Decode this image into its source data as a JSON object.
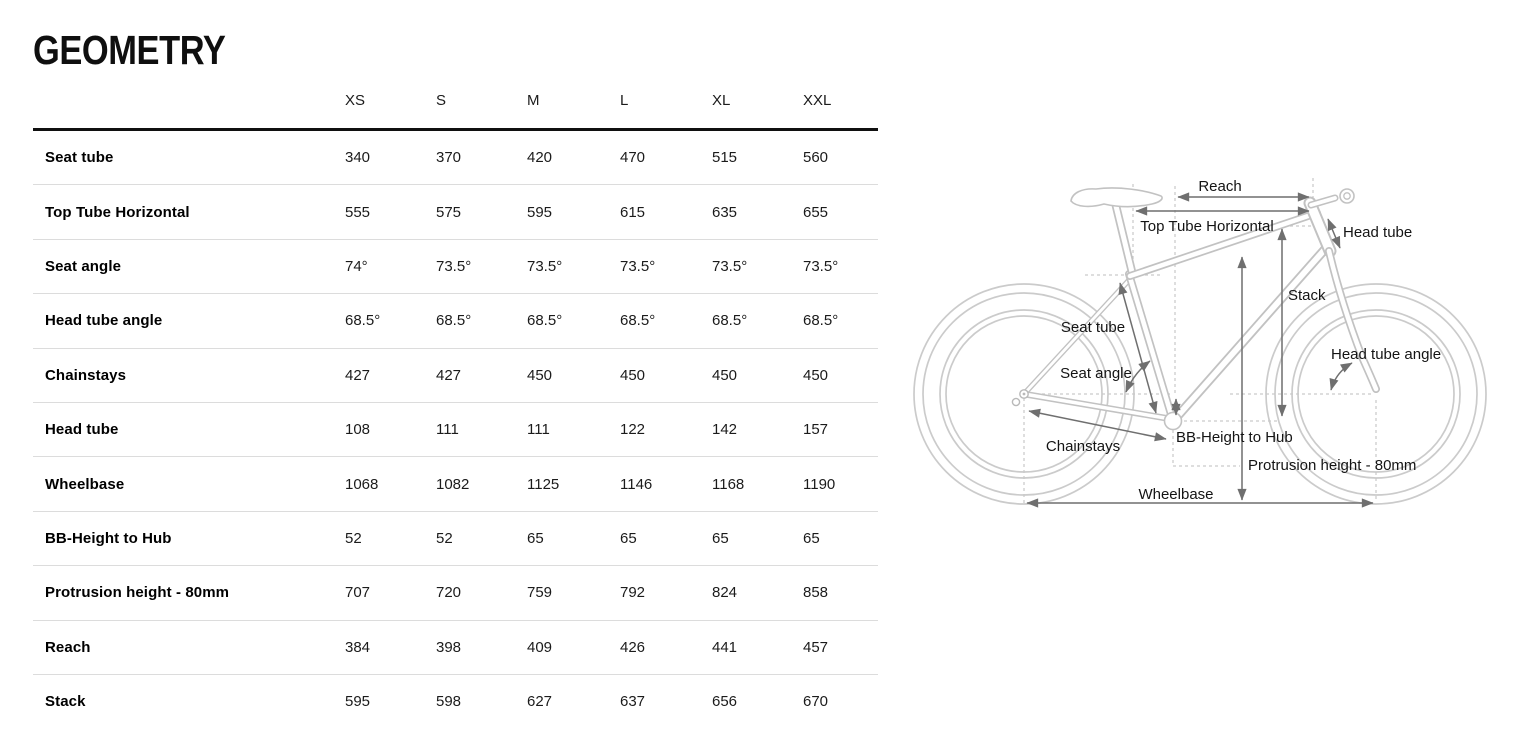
{
  "page": {
    "title": "GEOMETRY"
  },
  "table": {
    "columns": [
      "XS",
      "S",
      "M",
      "L",
      "XL",
      "XXL"
    ],
    "rows": [
      {
        "label": "Seat tube",
        "values": [
          "340",
          "370",
          "420",
          "470",
          "515",
          "560"
        ]
      },
      {
        "label": "Top Tube Horizontal",
        "values": [
          "555",
          "575",
          "595",
          "615",
          "635",
          "655"
        ]
      },
      {
        "label": "Seat angle",
        "values": [
          "74°",
          "73.5°",
          "73.5°",
          "73.5°",
          "73.5°",
          "73.5°"
        ]
      },
      {
        "label": "Head tube angle",
        "values": [
          "68.5°",
          "68.5°",
          "68.5°",
          "68.5°",
          "68.5°",
          "68.5°"
        ]
      },
      {
        "label": "Chainstays",
        "values": [
          "427",
          "427",
          "450",
          "450",
          "450",
          "450"
        ]
      },
      {
        "label": "Head tube",
        "values": [
          "108",
          "111",
          "111",
          "122",
          "142",
          "157"
        ]
      },
      {
        "label": "Wheelbase",
        "values": [
          "1068",
          "1082",
          "1125",
          "1146",
          "1168",
          "1190"
        ]
      },
      {
        "label": "BB-Height to Hub",
        "values": [
          "52",
          "52",
          "65",
          "65",
          "65",
          "65"
        ]
      },
      {
        "label": "Protrusion height - 80mm",
        "values": [
          "707",
          "720",
          "759",
          "792",
          "824",
          "858"
        ]
      },
      {
        "label": "Reach",
        "values": [
          "384",
          "398",
          "409",
          "426",
          "441",
          "457"
        ]
      },
      {
        "label": "Stack",
        "values": [
          "595",
          "598",
          "627",
          "637",
          "656",
          "670"
        ]
      }
    ]
  },
  "diagram": {
    "labels": {
      "reach": "Reach",
      "top_tube_horizontal": "Top Tube Horizontal",
      "head_tube": "Head tube",
      "stack": "Stack",
      "seat_tube": "Seat tube",
      "seat_angle": "Seat angle",
      "head_tube_angle": "Head tube angle",
      "chainstays": "Chainstays",
      "bb_height_to_hub": "BB-Height to Hub",
      "protrusion_height": "Protrusion height - 80mm",
      "wheelbase": "Wheelbase"
    }
  },
  "colors": {
    "text": "#141414",
    "header_rule": "#101010",
    "row_separator": "#dcdcdc",
    "bike_outline": "#c2c2c2",
    "dimension_arrow": "#6f6f6f"
  }
}
